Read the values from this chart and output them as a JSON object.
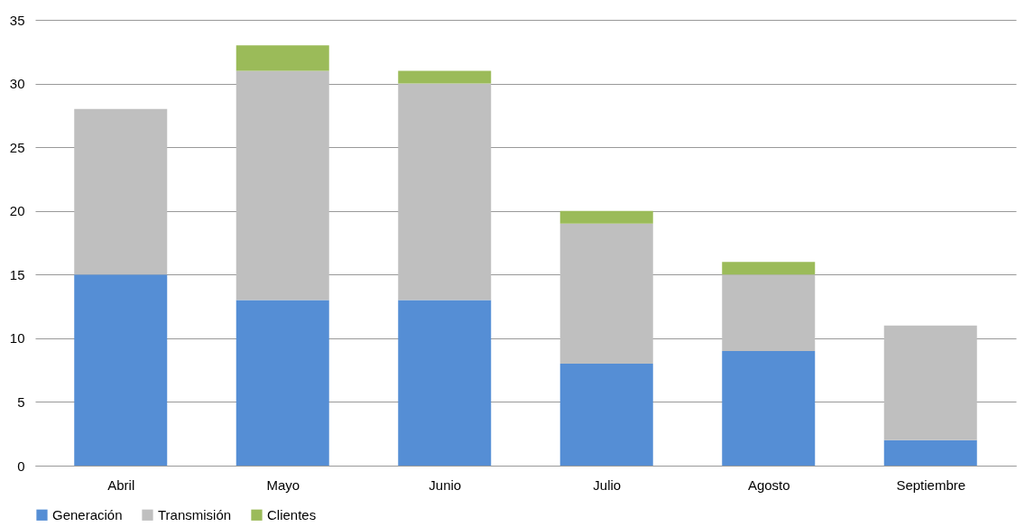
{
  "chart_data": {
    "type": "bar",
    "stacked": true,
    "categories": [
      "Abril",
      "Mayo",
      "Junio",
      "Julio",
      "Agosto",
      "Septiembre"
    ],
    "series": [
      {
        "name": "Generación",
        "color": "#558ed5",
        "values": [
          15,
          13,
          13,
          8,
          9,
          2
        ]
      },
      {
        "name": "Transmisión",
        "color": "#bfbfbf",
        "values": [
          13,
          18,
          17,
          11,
          6,
          9
        ]
      },
      {
        "name": "Clientes",
        "color": "#9bbb59",
        "values": [
          null,
          2,
          1,
          1,
          1,
          null
        ]
      }
    ],
    "ylim": [
      0,
      35
    ],
    "yticks": [
      0,
      5,
      10,
      15,
      20,
      25,
      30,
      35
    ],
    "grid": "y",
    "legend": "bottom"
  }
}
